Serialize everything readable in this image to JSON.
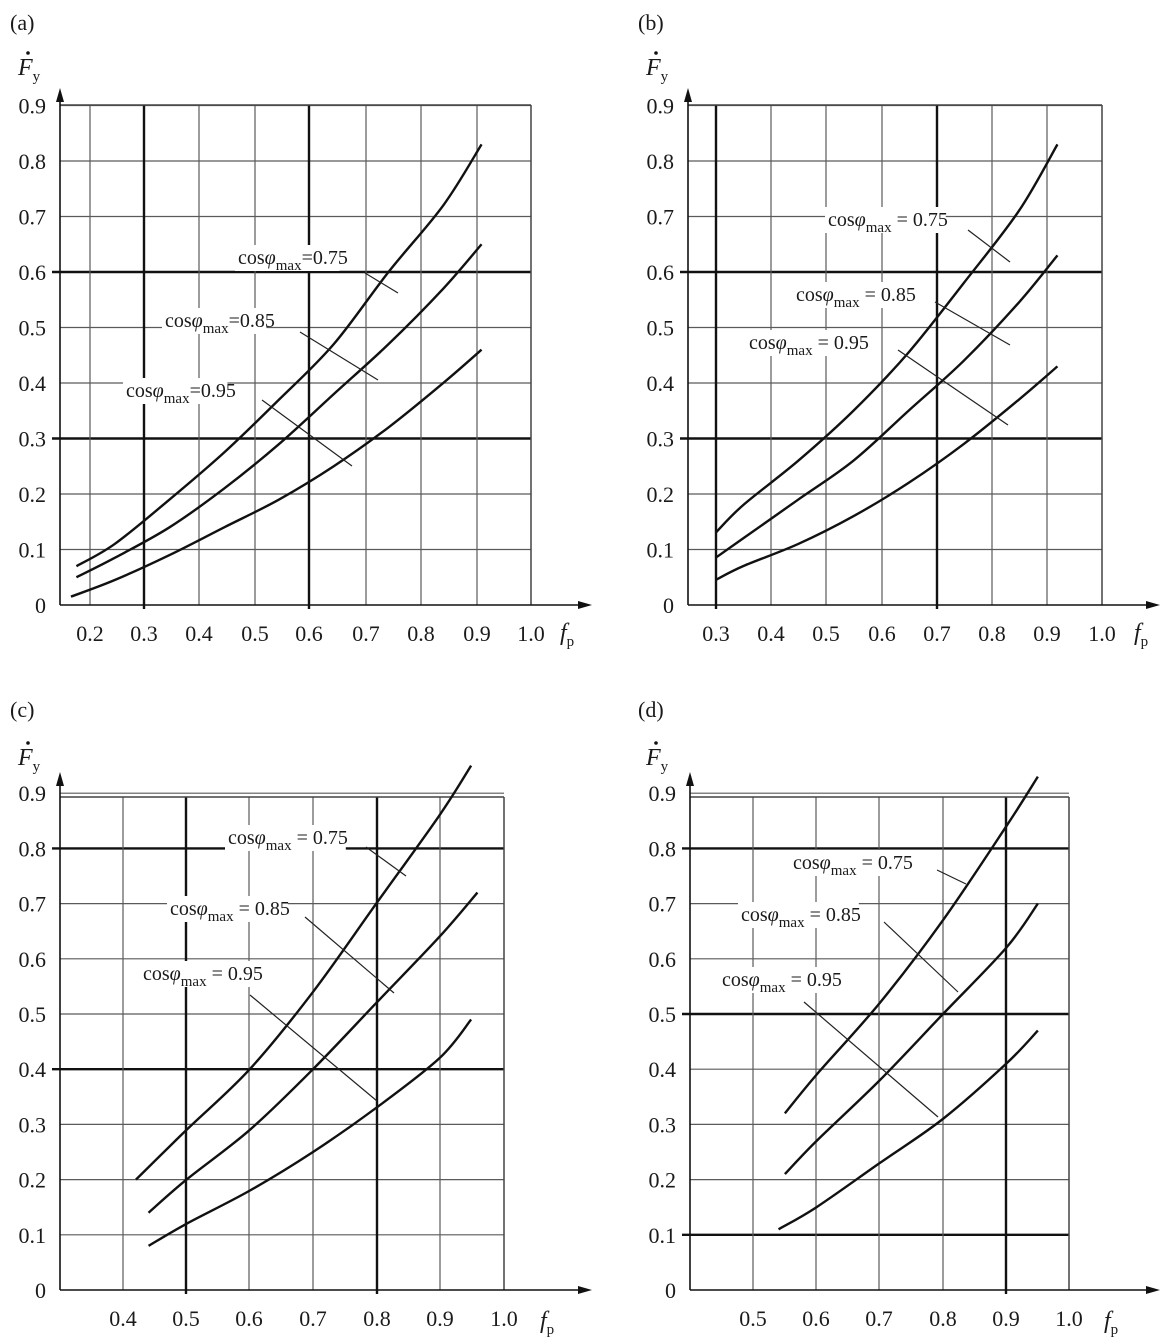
{
  "figure": {
    "panels": [
      {
        "label": "(a)",
        "ylabel": "F",
        "ylabel_sub": "y",
        "xlabel": "f",
        "xlabel_sub": "p",
        "xticks": [
          "0.2",
          "0.3",
          "0.4",
          "0.5",
          "0.6",
          "0.7",
          "0.8",
          "0.9",
          "1.0"
        ],
        "yticks": [
          "0",
          "0.1",
          "0.2",
          "0.3",
          "0.4",
          "0.5",
          "0.6",
          "0.7",
          "0.8",
          "0.9"
        ],
        "annotations": [
          "cosφmax=0.75",
          "cosφmax=0.85",
          "cosφmax=0.95"
        ]
      },
      {
        "label": "(b)",
        "ylabel": "F",
        "ylabel_sub": "y",
        "xlabel": "f",
        "xlabel_sub": "p",
        "xticks": [
          "0.3",
          "0.4",
          "0.5",
          "0.6",
          "0.7",
          "0.8",
          "0.9",
          "1.0"
        ],
        "yticks": [
          "0",
          "0.1",
          "0.2",
          "0.3",
          "0.4",
          "0.5",
          "0.6",
          "0.7",
          "0.8",
          "0.9"
        ],
        "annotations": [
          "cosφmax = 0.75",
          "cosφmax = 0.85",
          "cosφmax = 0.95"
        ]
      },
      {
        "label": "(c)",
        "ylabel": "F",
        "ylabel_sub": "y",
        "xlabel": "f",
        "xlabel_sub": "p",
        "xticks": [
          "0.4",
          "0.5",
          "0.6",
          "0.7",
          "0.8",
          "0.9",
          "1.0"
        ],
        "yticks": [
          "0",
          "0.1",
          "0.2",
          "0.3",
          "0.4",
          "0.5",
          "0.6",
          "0.7",
          "0.8",
          "0.9"
        ],
        "annotations": [
          "cosφmax = 0.75",
          "cosφmax = 0.85",
          "cosφmax = 0.95"
        ]
      },
      {
        "label": "(d)",
        "ylabel": "F",
        "ylabel_sub": "y",
        "xlabel": "f",
        "xlabel_sub": "p",
        "xticks": [
          "0.5",
          "0.6",
          "0.7",
          "0.8",
          "0.9",
          "1.0"
        ],
        "yticks": [
          "0",
          "0.1",
          "0.2",
          "0.3",
          "0.4",
          "0.5",
          "0.6",
          "0.7",
          "0.8",
          "0.9"
        ],
        "annotations": [
          "cosφmax = 0.75",
          "cosφmax = 0.85",
          "cosφmax = 0.95"
        ]
      }
    ]
  },
  "chart_data": [
    {
      "type": "line",
      "panel": "(a)",
      "xlabel": "fp",
      "ylabel": "Fy",
      "xlim": [
        0.2,
        1.0
      ],
      "ylim": [
        0,
        0.9
      ],
      "grid": true,
      "series": [
        {
          "name": "cosφmax=0.75",
          "points": [
            [
              0.23,
              0.07
            ],
            [
              0.3,
              0.11
            ],
            [
              0.4,
              0.19
            ],
            [
              0.5,
              0.275
            ],
            [
              0.6,
              0.37
            ],
            [
              0.7,
              0.47
            ],
            [
              0.8,
              0.6
            ],
            [
              0.9,
              0.72
            ],
            [
              0.97,
              0.83
            ]
          ]
        },
        {
          "name": "cosφmax=0.85",
          "points": [
            [
              0.23,
              0.05
            ],
            [
              0.3,
              0.085
            ],
            [
              0.4,
              0.14
            ],
            [
              0.5,
              0.21
            ],
            [
              0.6,
              0.29
            ],
            [
              0.7,
              0.38
            ],
            [
              0.8,
              0.47
            ],
            [
              0.9,
              0.57
            ],
            [
              0.97,
              0.65
            ]
          ]
        },
        {
          "name": "cosφmax=0.95",
          "points": [
            [
              0.22,
              0.015
            ],
            [
              0.3,
              0.045
            ],
            [
              0.4,
              0.09
            ],
            [
              0.5,
              0.14
            ],
            [
              0.6,
              0.19
            ],
            [
              0.7,
              0.25
            ],
            [
              0.8,
              0.32
            ],
            [
              0.9,
              0.4
            ],
            [
              0.97,
              0.46
            ]
          ]
        }
      ]
    },
    {
      "type": "line",
      "panel": "(b)",
      "xlabel": "fp",
      "ylabel": "Fy",
      "xlim": [
        0.3,
        1.0
      ],
      "ylim": [
        0,
        0.9
      ],
      "grid": true,
      "series": [
        {
          "name": "cosφmax = 0.75",
          "points": [
            [
              0.35,
              0.13
            ],
            [
              0.4,
              0.18
            ],
            [
              0.5,
              0.26
            ],
            [
              0.6,
              0.35
            ],
            [
              0.7,
              0.455
            ],
            [
              0.8,
              0.58
            ],
            [
              0.9,
              0.71
            ],
            [
              0.97,
              0.83
            ]
          ]
        },
        {
          "name": "cosφmax = 0.85",
          "points": [
            [
              0.35,
              0.085
            ],
            [
              0.4,
              0.12
            ],
            [
              0.5,
              0.19
            ],
            [
              0.6,
              0.26
            ],
            [
              0.7,
              0.35
            ],
            [
              0.8,
              0.44
            ],
            [
              0.9,
              0.545
            ],
            [
              0.97,
              0.63
            ]
          ]
        },
        {
          "name": "cosφmax = 0.95",
          "points": [
            [
              0.35,
              0.045
            ],
            [
              0.4,
              0.07
            ],
            [
              0.5,
              0.11
            ],
            [
              0.6,
              0.16
            ],
            [
              0.7,
              0.22
            ],
            [
              0.8,
              0.29
            ],
            [
              0.9,
              0.37
            ],
            [
              0.97,
              0.43
            ]
          ]
        }
      ]
    },
    {
      "type": "line",
      "panel": "(c)",
      "xlabel": "fp",
      "ylabel": "Fy",
      "xlim": [
        0.3,
        1.0
      ],
      "ylim": [
        0,
        0.9
      ],
      "grid": true,
      "series": [
        {
          "name": "cosφmax = 0.75",
          "points": [
            [
              0.42,
              0.2
            ],
            [
              0.5,
              0.29
            ],
            [
              0.6,
              0.4
            ],
            [
              0.7,
              0.54
            ],
            [
              0.8,
              0.7
            ],
            [
              0.9,
              0.86
            ],
            [
              0.95,
              0.95
            ]
          ]
        },
        {
          "name": "cosφmax = 0.85",
          "points": [
            [
              0.44,
              0.14
            ],
            [
              0.5,
              0.2
            ],
            [
              0.6,
              0.29
            ],
            [
              0.7,
              0.4
            ],
            [
              0.8,
              0.52
            ],
            [
              0.9,
              0.64
            ],
            [
              0.96,
              0.72
            ]
          ]
        },
        {
          "name": "cosφmax = 0.95",
          "points": [
            [
              0.44,
              0.08
            ],
            [
              0.5,
              0.12
            ],
            [
              0.6,
              0.18
            ],
            [
              0.7,
              0.25
            ],
            [
              0.8,
              0.33
            ],
            [
              0.9,
              0.42
            ],
            [
              0.95,
              0.49
            ]
          ]
        }
      ]
    },
    {
      "type": "line",
      "panel": "(d)",
      "xlabel": "fp",
      "ylabel": "Fy",
      "xlim": [
        0.4,
        1.0
      ],
      "ylim": [
        0,
        0.9
      ],
      "grid": true,
      "series": [
        {
          "name": "cosφmax = 0.75",
          "points": [
            [
              0.55,
              0.32
            ],
            [
              0.6,
              0.39
            ],
            [
              0.7,
              0.52
            ],
            [
              0.8,
              0.67
            ],
            [
              0.9,
              0.84
            ],
            [
              0.95,
              0.93
            ]
          ]
        },
        {
          "name": "cosφmax = 0.85",
          "points": [
            [
              0.55,
              0.21
            ],
            [
              0.6,
              0.27
            ],
            [
              0.7,
              0.38
            ],
            [
              0.8,
              0.5
            ],
            [
              0.9,
              0.62
            ],
            [
              0.95,
              0.7
            ]
          ]
        },
        {
          "name": "cosφmax = 0.95",
          "points": [
            [
              0.54,
              0.11
            ],
            [
              0.6,
              0.15
            ],
            [
              0.7,
              0.23
            ],
            [
              0.8,
              0.31
            ],
            [
              0.9,
              0.41
            ],
            [
              0.95,
              0.47
            ]
          ]
        }
      ]
    }
  ]
}
